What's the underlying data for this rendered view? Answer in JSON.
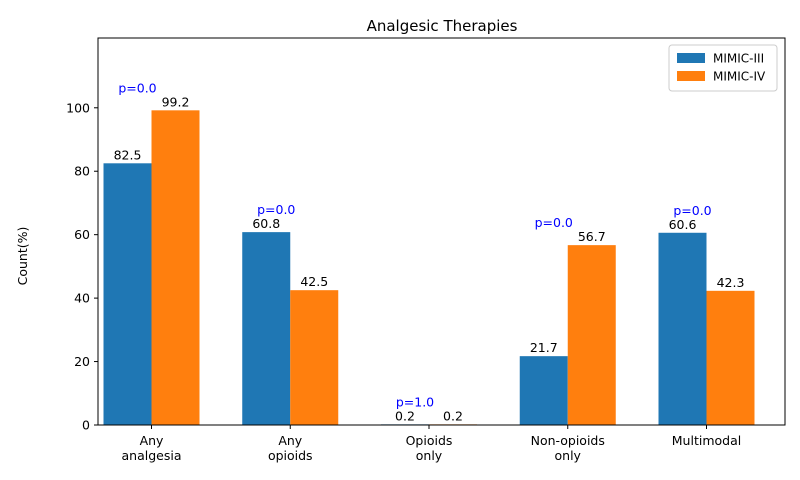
{
  "chart_data": {
    "type": "bar",
    "title": "Analgesic Therapies",
    "xlabel": "",
    "ylabel": "Count(%)",
    "ylim": [
      0,
      122
    ],
    "yticks": [
      0,
      20,
      40,
      60,
      80,
      100
    ],
    "categories": [
      [
        "Any",
        "analgesia"
      ],
      [
        "Any",
        "opioids"
      ],
      [
        "Opioids",
        "only"
      ],
      [
        "Non-opioids",
        "only"
      ],
      [
        "Multimodal"
      ]
    ],
    "series": [
      {
        "name": "MIMIC-III",
        "color": "#1f77b4",
        "values": [
          82.5,
          60.8,
          0.2,
          21.7,
          60.6
        ],
        "labels": [
          "82.5",
          "60.8",
          "0.2",
          "21.7",
          "60.6"
        ]
      },
      {
        "name": "MIMIC-IV",
        "color": "#ff7f0e",
        "values": [
          99.2,
          42.5,
          0.2,
          56.7,
          42.3
        ],
        "labels": [
          "99.2",
          "42.5",
          "0.2",
          "56.7",
          "42.3"
        ]
      }
    ],
    "annotations": [
      {
        "category_index": 0,
        "text": "p=0.0"
      },
      {
        "category_index": 1,
        "text": "p=0.0"
      },
      {
        "category_index": 2,
        "text": "p=1.0"
      },
      {
        "category_index": 3,
        "text": "p=0.0"
      },
      {
        "category_index": 4,
        "text": "p=0.0"
      }
    ],
    "legend_position": "top-right",
    "grid": false
  }
}
